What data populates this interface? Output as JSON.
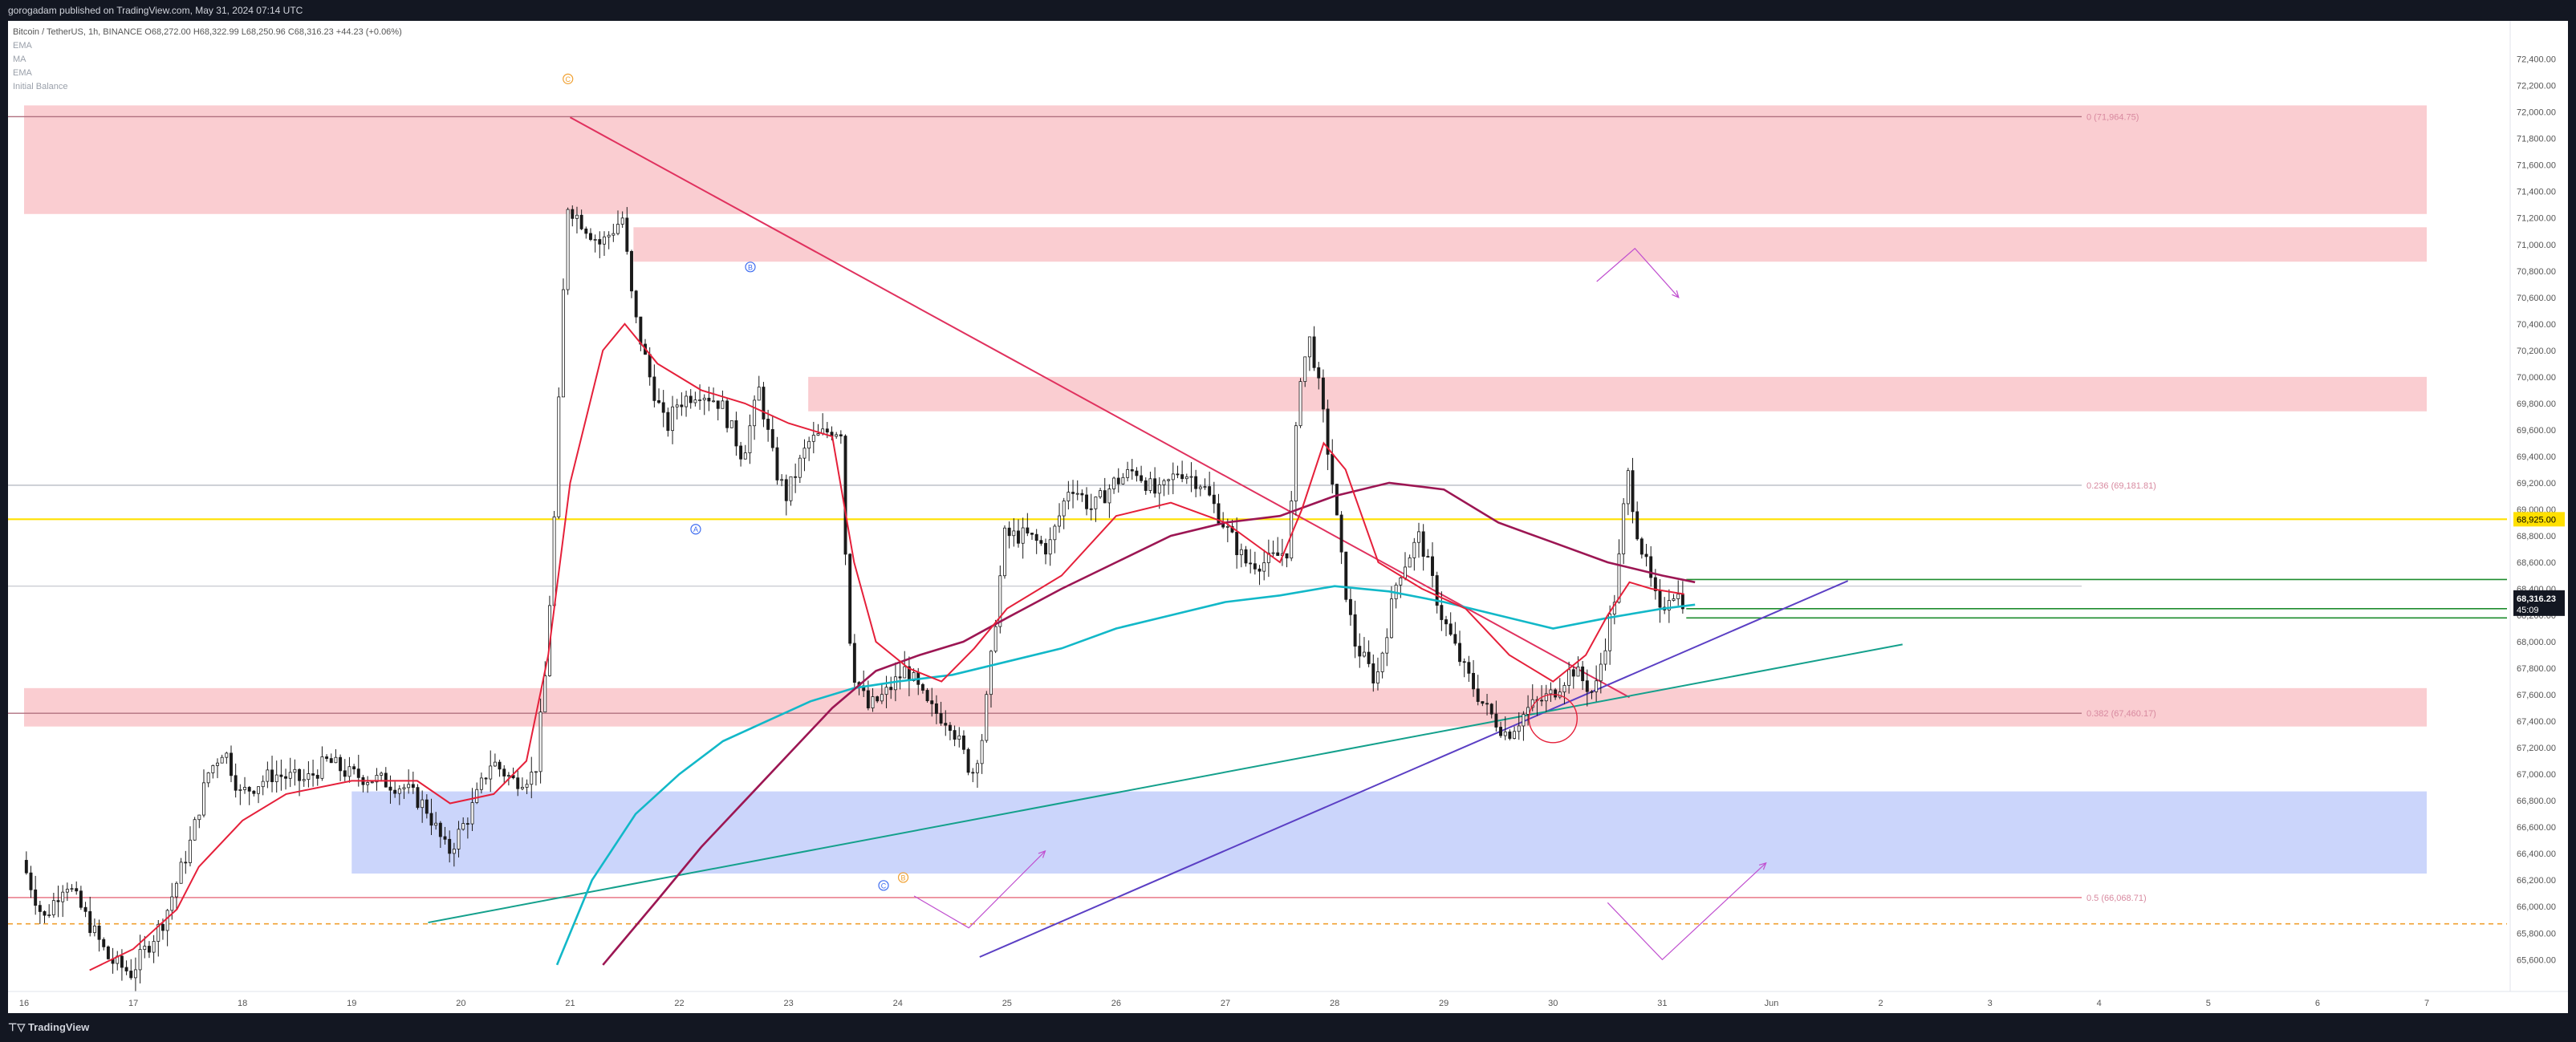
{
  "header": {
    "publisher_line": "gorogadam published on TradingView.com, May 31, 2024 07:14 UTC"
  },
  "legend": {
    "symbol_line": "Bitcoin / TetherUS, 1h, BINANCE",
    "ohlc": "O68,272.00  H68,322.99  L68,250.96  C68,316.23  +44.23 (+0.06%)",
    "indicators": [
      "EMA",
      "MA",
      "EMA",
      "Initial Balance"
    ]
  },
  "footer": {
    "logo_label": "TradingView"
  },
  "colors": {
    "bg": "#ffffff",
    "supply_zone": "#f9c8cc",
    "demand_zone": "#c5d0fb",
    "candle": "#1a1a1a",
    "ema_fast": "#e5203a",
    "ma_slow": "#9c1653",
    "ema_teal": "#12b8c8",
    "yellow_line": "#ffe000",
    "green_lines": "#1e8c2e",
    "trend_down": "#e0315e",
    "trend_up_purple": "#5b3fc4",
    "trend_up_teal": "#14a08c",
    "fib_label": "#d88aa0",
    "arrows": "#c04fcf",
    "orange_dash": "#f0a030"
  },
  "chart_data": {
    "type": "candlestick",
    "symbol": "Bitcoin / TetherUS",
    "interval": "1h",
    "exchange": "BINANCE",
    "x_axis_labels": [
      "16",
      "17",
      "18",
      "19",
      "20",
      "21",
      "22",
      "23",
      "24",
      "25",
      "26",
      "27",
      "28",
      "29",
      "30",
      "31",
      "Jun",
      "2",
      "3",
      "4",
      "5",
      "6",
      "7"
    ],
    "y_ticks": [
      "72,400.00",
      "72,200.00",
      "72,000.00",
      "71,800.00",
      "71,600.00",
      "71,400.00",
      "71,200.00",
      "71,000.00",
      "70,800.00",
      "70,600.00",
      "70,400.00",
      "70,200.00",
      "70,000.00",
      "69,800.00",
      "69,600.00",
      "69,400.00",
      "69,200.00",
      "69,000.00",
      "68,800.00",
      "68,600.00",
      "68,400.00",
      "68,200.00",
      "68,000.00",
      "67,800.00",
      "67,600.00",
      "67,400.00",
      "67,200.00",
      "67,000.00",
      "66,800.00",
      "66,600.00",
      "66,400.00",
      "66,200.00",
      "66,000.00",
      "65,800.00",
      "65,600.00"
    ],
    "ylim": [
      65420,
      72640
    ],
    "price_label": {
      "price": "68,316.23",
      "countdown": "45:09",
      "value": 68316.23
    },
    "yellow_level": {
      "label": "68,925.00",
      "value": 68925
    },
    "fib_levels": [
      {
        "label": "0 (71,964.75)",
        "value": 71964.75
      },
      {
        "label": "0.236 (69,181.81)",
        "value": 69181.81
      },
      {
        "label": "0.382 (67,460.17)",
        "value": 67460.17
      },
      {
        "label": "0.5 (66,068.71)",
        "value": 66068.71
      }
    ],
    "zones": [
      {
        "type": "supply",
        "from_day": 16.0,
        "to_day": 38.0,
        "low": 71230,
        "high": 72050
      },
      {
        "type": "supply",
        "from_day": 21.58,
        "to_day": 38.0,
        "low": 70870,
        "high": 71130
      },
      {
        "type": "supply",
        "from_day": 23.18,
        "to_day": 38.0,
        "low": 69740,
        "high": 70000
      },
      {
        "type": "supply",
        "from_day": 16.0,
        "to_day": 38.0,
        "low": 67360,
        "high": 67650
      },
      {
        "type": "demand",
        "from_day": 19.0,
        "to_day": 38.0,
        "low": 66250,
        "high": 66870
      }
    ],
    "wave_labels": [
      {
        "text": "C",
        "day": 20.98,
        "price": 72250,
        "color": "#f0a030"
      },
      {
        "text": "B",
        "day": 22.65,
        "price": 70830,
        "color": "#3d6cf0"
      },
      {
        "text": "A",
        "day": 22.15,
        "price": 68850,
        "color": "#3d6cf0"
      },
      {
        "text": "C",
        "day": 23.87,
        "price": 66160,
        "color": "#3d6cf0"
      },
      {
        "text": "B",
        "day": 24.05,
        "price": 66220,
        "color": "#f0a030"
      }
    ],
    "waypoints": [
      [
        16.0,
        66350
      ],
      [
        16.2,
        65900
      ],
      [
        16.4,
        66200
      ],
      [
        16.6,
        65900
      ],
      [
        16.8,
        65600
      ],
      [
        17.0,
        65500
      ],
      [
        17.3,
        65900
      ],
      [
        17.55,
        66500
      ],
      [
        17.7,
        67000
      ],
      [
        17.85,
        67200
      ],
      [
        18.0,
        66850
      ],
      [
        18.3,
        67000
      ],
      [
        18.6,
        66950
      ],
      [
        18.8,
        67100
      ],
      [
        19.0,
        67000
      ],
      [
        19.3,
        66950
      ],
      [
        19.5,
        66900
      ],
      [
        19.7,
        66750
      ],
      [
        19.9,
        66400
      ],
      [
        20.1,
        66700
      ],
      [
        20.3,
        67100
      ],
      [
        20.5,
        66950
      ],
      [
        20.7,
        67000
      ],
      [
        20.8,
        67800
      ],
      [
        20.88,
        69000
      ],
      [
        20.95,
        70500
      ],
      [
        21.0,
        71300
      ],
      [
        21.1,
        71200
      ],
      [
        21.3,
        71000
      ],
      [
        21.5,
        71200
      ],
      [
        21.6,
        70500
      ],
      [
        21.75,
        70000
      ],
      [
        21.9,
        69600
      ],
      [
        22.0,
        69800
      ],
      [
        22.2,
        69900
      ],
      [
        22.4,
        69800
      ],
      [
        22.6,
        69400
      ],
      [
        22.75,
        69900
      ],
      [
        22.9,
        69300
      ],
      [
        23.0,
        69100
      ],
      [
        23.2,
        69500
      ],
      [
        23.4,
        69600
      ],
      [
        23.5,
        69600
      ],
      [
        23.55,
        68500
      ],
      [
        23.6,
        67800
      ],
      [
        23.75,
        67500
      ],
      [
        23.9,
        67600
      ],
      [
        24.1,
        67800
      ],
      [
        24.3,
        67500
      ],
      [
        24.5,
        67400
      ],
      [
        24.7,
        67000
      ],
      [
        24.8,
        67300
      ],
      [
        25.0,
        68800
      ],
      [
        25.2,
        68800
      ],
      [
        25.4,
        68700
      ],
      [
        25.6,
        69200
      ],
      [
        25.8,
        69000
      ],
      [
        26.0,
        69200
      ],
      [
        26.2,
        69300
      ],
      [
        26.4,
        69100
      ],
      [
        26.6,
        69300
      ],
      [
        26.8,
        69200
      ],
      [
        27.0,
        68900
      ],
      [
        27.2,
        68600
      ],
      [
        27.4,
        68600
      ],
      [
        27.6,
        68700
      ],
      [
        27.7,
        70000
      ],
      [
        27.8,
        70300
      ],
      [
        27.9,
        69800
      ],
      [
        28.0,
        69200
      ],
      [
        28.1,
        68500
      ],
      [
        28.2,
        68000
      ],
      [
        28.4,
        67700
      ],
      [
        28.6,
        68500
      ],
      [
        28.8,
        68800
      ],
      [
        29.0,
        68200
      ],
      [
        29.2,
        67800
      ],
      [
        29.4,
        67500
      ],
      [
        29.6,
        67300
      ],
      [
        29.8,
        67500
      ],
      [
        30.0,
        67600
      ],
      [
        30.2,
        67800
      ],
      [
        30.4,
        67600
      ],
      [
        30.6,
        68400
      ],
      [
        30.7,
        69300
      ],
      [
        30.8,
        68800
      ],
      [
        30.9,
        68500
      ],
      [
        31.0,
        68200
      ],
      [
        31.1,
        68400
      ],
      [
        31.2,
        68316
      ]
    ],
    "ema_fast": [
      [
        16.6,
        65520
      ],
      [
        17.0,
        65680
      ],
      [
        17.4,
        65980
      ],
      [
        17.6,
        66300
      ],
      [
        18.0,
        66650
      ],
      [
        18.4,
        66850
      ],
      [
        19.0,
        66950
      ],
      [
        19.6,
        66950
      ],
      [
        19.9,
        66780
      ],
      [
        20.3,
        66850
      ],
      [
        20.6,
        67100
      ],
      [
        20.8,
        67900
      ],
      [
        21.0,
        69200
      ],
      [
        21.3,
        70200
      ],
      [
        21.5,
        70400
      ],
      [
        21.8,
        70100
      ],
      [
        22.2,
        69900
      ],
      [
        22.6,
        69800
      ],
      [
        23.0,
        69650
      ],
      [
        23.4,
        69550
      ],
      [
        23.6,
        68600
      ],
      [
        23.8,
        68000
      ],
      [
        24.1,
        67800
      ],
      [
        24.4,
        67700
      ],
      [
        24.7,
        67950
      ],
      [
        25.0,
        68250
      ],
      [
        25.5,
        68500
      ],
      [
        26.0,
        68950
      ],
      [
        26.5,
        69050
      ],
      [
        27.0,
        68900
      ],
      [
        27.5,
        68600
      ],
      [
        27.7,
        69000
      ],
      [
        27.9,
        69500
      ],
      [
        28.1,
        69300
      ],
      [
        28.4,
        68600
      ],
      [
        28.8,
        68400
      ],
      [
        29.2,
        68250
      ],
      [
        29.6,
        67900
      ],
      [
        30.0,
        67700
      ],
      [
        30.3,
        67900
      ],
      [
        30.5,
        68200
      ],
      [
        30.7,
        68450
      ],
      [
        30.9,
        68400
      ],
      [
        31.2,
        68360
      ]
    ],
    "ma_slow": [
      [
        21.3,
        65560
      ],
      [
        21.8,
        66050
      ],
      [
        22.2,
        66450
      ],
      [
        22.6,
        66800
      ],
      [
        23.0,
        67150
      ],
      [
        23.4,
        67500
      ],
      [
        23.8,
        67780
      ],
      [
        24.2,
        67900
      ],
      [
        24.6,
        68000
      ],
      [
        25.0,
        68180
      ],
      [
        25.5,
        68400
      ],
      [
        26.0,
        68600
      ],
      [
        26.5,
        68800
      ],
      [
        27.0,
        68900
      ],
      [
        27.5,
        68950
      ],
      [
        28.0,
        69100
      ],
      [
        28.5,
        69200
      ],
      [
        29.0,
        69150
      ],
      [
        29.5,
        68900
      ],
      [
        30.0,
        68750
      ],
      [
        30.5,
        68600
      ],
      [
        31.0,
        68500
      ],
      [
        31.3,
        68450
      ]
    ],
    "ema_teal": [
      [
        20.88,
        65560
      ],
      [
        21.2,
        66200
      ],
      [
        21.6,
        66700
      ],
      [
        22.0,
        67000
      ],
      [
        22.4,
        67250
      ],
      [
        22.8,
        67400
      ],
      [
        23.2,
        67550
      ],
      [
        23.6,
        67650
      ],
      [
        24.0,
        67700
      ],
      [
        24.5,
        67750
      ],
      [
        25.0,
        67850
      ],
      [
        25.5,
        67950
      ],
      [
        26.0,
        68100
      ],
      [
        26.5,
        68200
      ],
      [
        27.0,
        68300
      ],
      [
        27.5,
        68350
      ],
      [
        28.0,
        68420
      ],
      [
        28.5,
        68380
      ],
      [
        29.0,
        68300
      ],
      [
        29.5,
        68200
      ],
      [
        30.0,
        68100
      ],
      [
        30.5,
        68180
      ],
      [
        31.0,
        68250
      ],
      [
        31.3,
        68280
      ]
    ]
  }
}
